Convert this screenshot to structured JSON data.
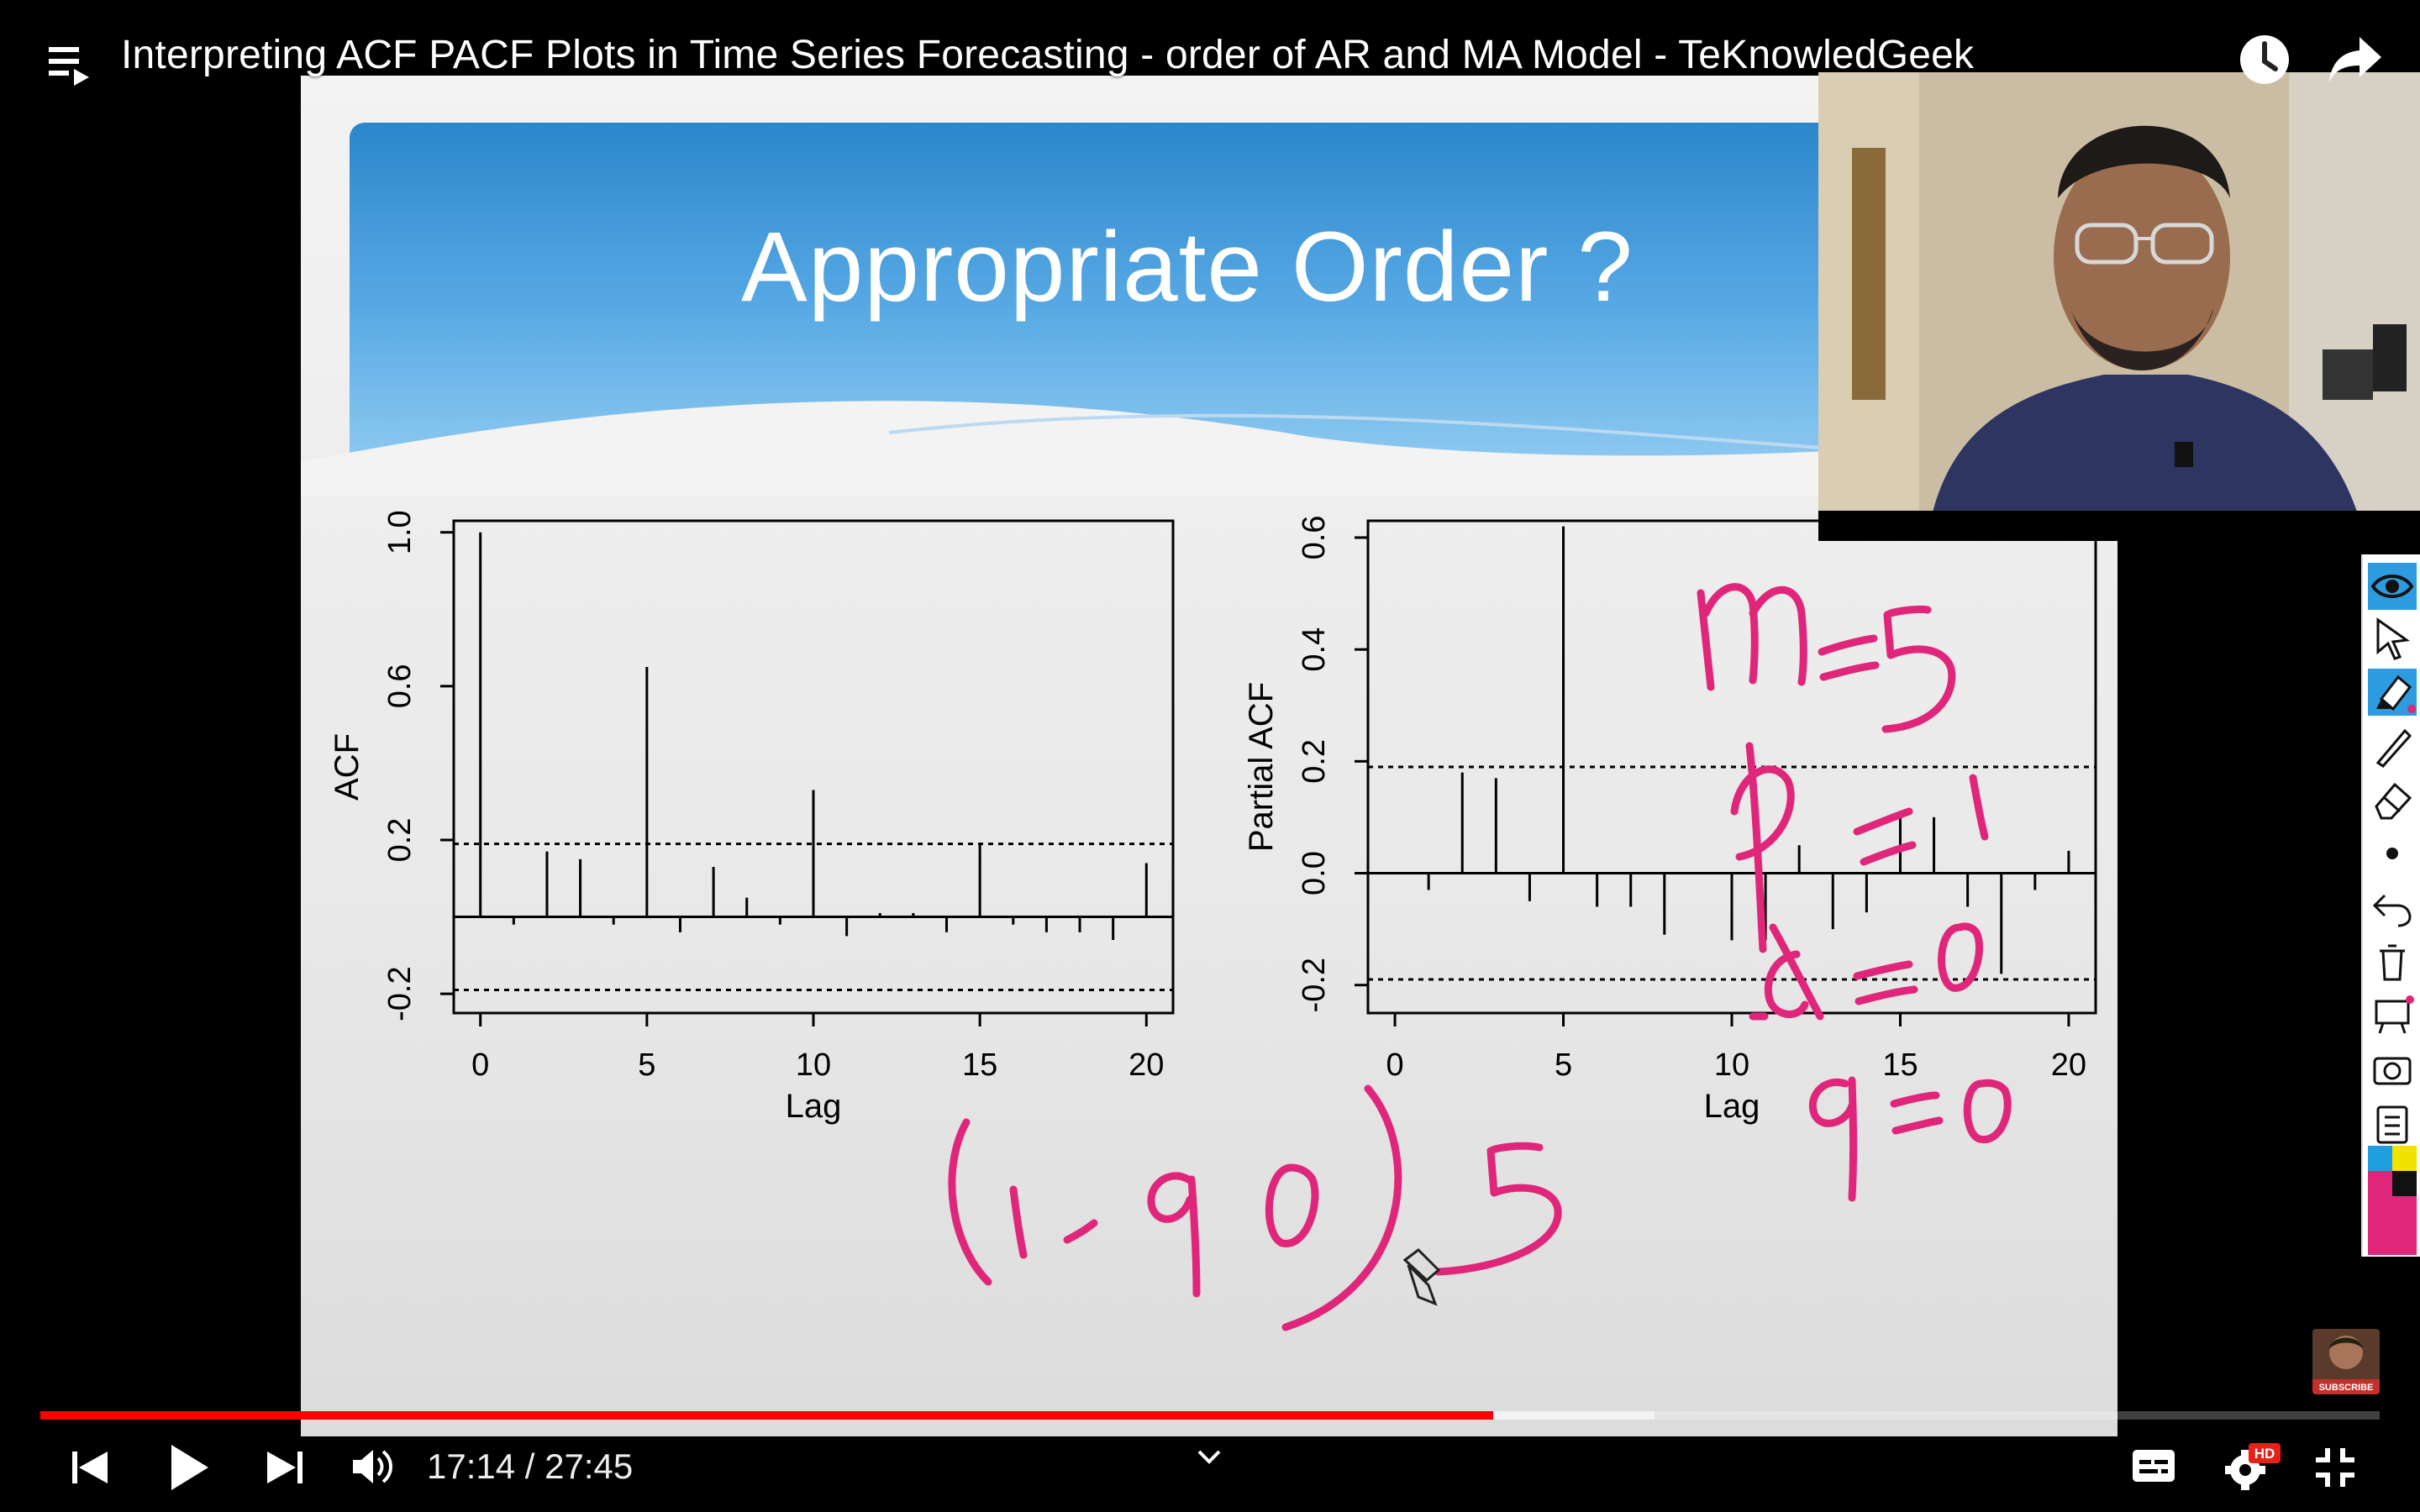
{
  "video": {
    "title": "Interpreting ACF PACF Plots in Time Series Forecasting - order of AR and MA Model - TeKnowledGeek",
    "current_time": "17:14",
    "duration": "27:45",
    "time_separator": "/",
    "progress_fraction": 0.621,
    "buffered_fraction": 0.69
  },
  "icons": {
    "playlist": "playlist-icon",
    "watch_later": "watch-later-icon",
    "share": "share-icon",
    "prev": "previous-icon",
    "play": "play-icon",
    "next": "next-icon",
    "volume": "volume-icon",
    "chevron": "chevron-down-icon",
    "captions": "captions-icon",
    "settings": "settings-icon",
    "exit_fullscreen": "exit-fullscreen-icon"
  },
  "badges": {
    "hd": "HD",
    "subscribe": "SUBSCRIBE"
  },
  "slide": {
    "title": "Appropriate Order ?"
  },
  "annotation_toolbar": {
    "tools": [
      "eye-icon",
      "pointer-icon",
      "highlighter-icon",
      "pen-icon",
      "eraser-icon",
      "dot-icon",
      "undo-icon",
      "trash-icon",
      "whiteboard-icon",
      "camera-icon",
      "clipboard-icon",
      "color-palette"
    ],
    "colors": {
      "cyan": "#1ea0e0",
      "yellow": "#f2e200",
      "black": "#111111",
      "magenta": "#e0267a"
    }
  },
  "handwriting": {
    "color": "#e0267a",
    "notes": [
      "m=5",
      "p=1",
      "d=0",
      "q=0",
      "(1,90)",
      "5"
    ]
  },
  "chart_data": [
    {
      "type": "bar",
      "xlabel": "Lag",
      "ylabel": "ACF",
      "x": [
        0,
        1,
        2,
        3,
        4,
        5,
        6,
        7,
        8,
        9,
        10,
        11,
        12,
        13,
        14,
        15,
        16,
        17,
        18,
        19,
        20
      ],
      "values": [
        1.0,
        -0.02,
        0.17,
        0.15,
        -0.02,
        0.65,
        -0.04,
        0.13,
        0.05,
        -0.02,
        0.33,
        -0.05,
        0.01,
        0.01,
        -0.04,
        0.19,
        -0.02,
        -0.04,
        -0.04,
        -0.06,
        0.14
      ],
      "xlim": [
        -0.8,
        20.8
      ],
      "ylim": [
        -0.25,
        1.03
      ],
      "xticks": [
        0,
        5,
        10,
        15,
        20
      ],
      "yticks": [
        -0.2,
        0.2,
        0.6,
        1.0
      ],
      "confidence_band": 0.19,
      "grid": false
    },
    {
      "type": "bar",
      "xlabel": "Lag",
      "ylabel": "Partial ACF",
      "x": [
        1,
        2,
        3,
        4,
        5,
        6,
        7,
        8,
        9,
        10,
        11,
        12,
        13,
        14,
        15,
        16,
        17,
        18,
        19,
        20
      ],
      "values": [
        -0.03,
        0.18,
        0.17,
        -0.05,
        0.62,
        -0.06,
        -0.06,
        -0.11,
        0.0,
        -0.12,
        -0.12,
        0.05,
        -0.1,
        -0.07,
        0.1,
        0.1,
        -0.06,
        -0.18,
        -0.03,
        0.04
      ],
      "xlim": [
        -0.8,
        20.8
      ],
      "ylim": [
        -0.25,
        0.63
      ],
      "xticks": [
        0,
        5,
        10,
        15,
        20
      ],
      "yticks": [
        -0.2,
        0.0,
        0.2,
        0.4,
        0.6
      ],
      "confidence_band": 0.19,
      "grid": false
    }
  ]
}
